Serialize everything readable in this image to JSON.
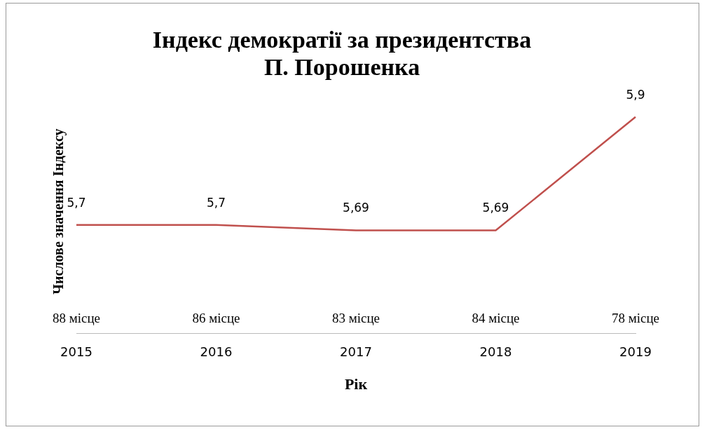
{
  "chart_data": {
    "type": "line",
    "title": "Індекс демократії за президентства\nП. Порошенка",
    "xlabel": "Рік",
    "ylabel": "Числове значення Індексу",
    "categories": [
      "2015",
      "2016",
      "2017",
      "2018",
      "2019"
    ],
    "series": [
      {
        "color": "#c0504d",
        "values": [
          5.7,
          5.7,
          5.69,
          5.69,
          5.9
        ],
        "value_labels": [
          "5,7",
          "5,7",
          "5,69",
          "5,69",
          "5,9"
        ]
      }
    ],
    "marker": "none",
    "legend": false,
    "grid": false,
    "annotations": [
      "88 місце",
      "86 місце",
      "83 місце",
      "84 місце",
      "78 місце"
    ]
  }
}
